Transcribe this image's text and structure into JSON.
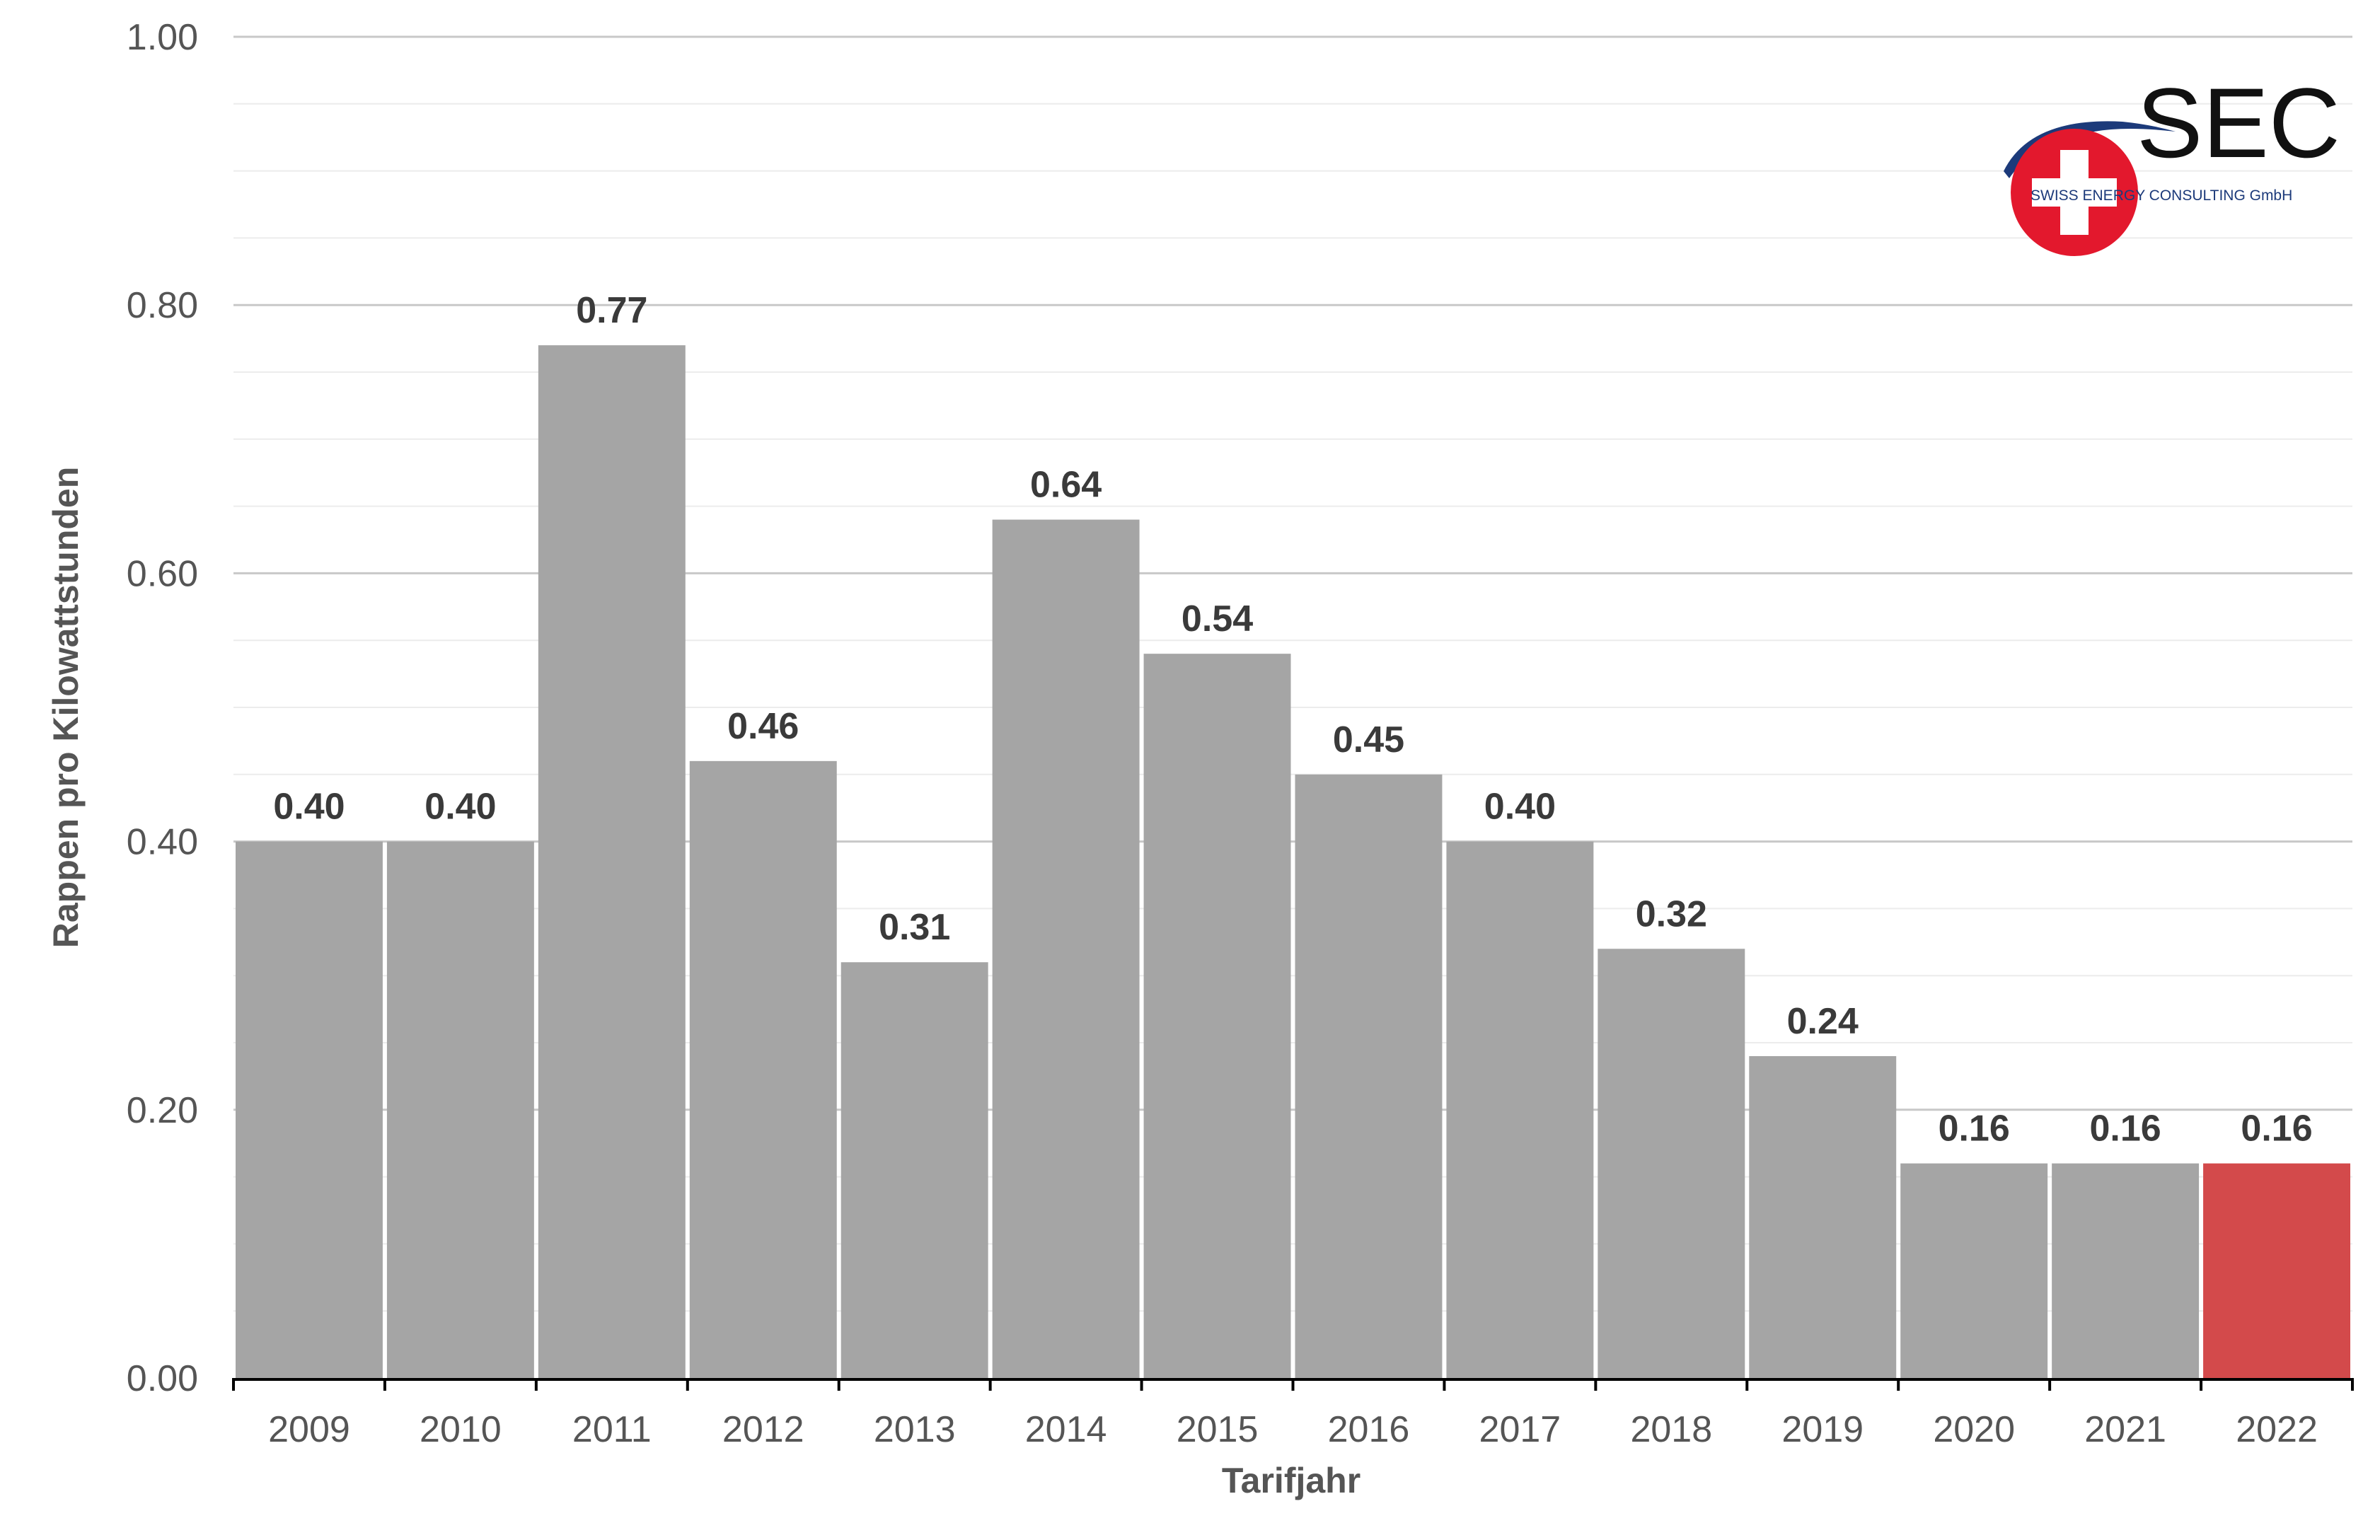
{
  "chart_data": {
    "type": "bar",
    "title": "",
    "xlabel": "Tarifjahr",
    "ylabel": "Rappen pro Kilowattstunden",
    "ylim": [
      0,
      1.0
    ],
    "yticks": [
      "0.00",
      "0.20",
      "0.40",
      "0.60",
      "0.80",
      "1.00"
    ],
    "categories": [
      "2009",
      "2010",
      "2011",
      "2012",
      "2013",
      "2014",
      "2015",
      "2016",
      "2017",
      "2018",
      "2019",
      "2020",
      "2021",
      "2022"
    ],
    "values": [
      0.4,
      0.4,
      0.77,
      0.46,
      0.31,
      0.64,
      0.54,
      0.45,
      0.4,
      0.32,
      0.24,
      0.16,
      0.16,
      0.16
    ],
    "value_labels": [
      "0.40",
      "0.40",
      "0.77",
      "0.46",
      "0.31",
      "0.64",
      "0.54",
      "0.45",
      "0.40",
      "0.32",
      "0.24",
      "0.16",
      "0.16",
      "0.16"
    ],
    "grid": true,
    "legend": "none",
    "colors": {
      "bar": "#a5a5a5",
      "highlight": "#d34a4b",
      "grid_major": "#c8c8c8",
      "grid_minor": "#ececec",
      "axis": "#000000"
    },
    "highlight_category": "2022"
  },
  "logo": {
    "text": "SEC",
    "subtext": "SWISS ENERGY CONSULTING GmbH",
    "icon": "swiss-cross-icon",
    "colors": {
      "red": "#e3182d",
      "blue": "#1c3a7a",
      "cross": "#ffffff"
    }
  }
}
